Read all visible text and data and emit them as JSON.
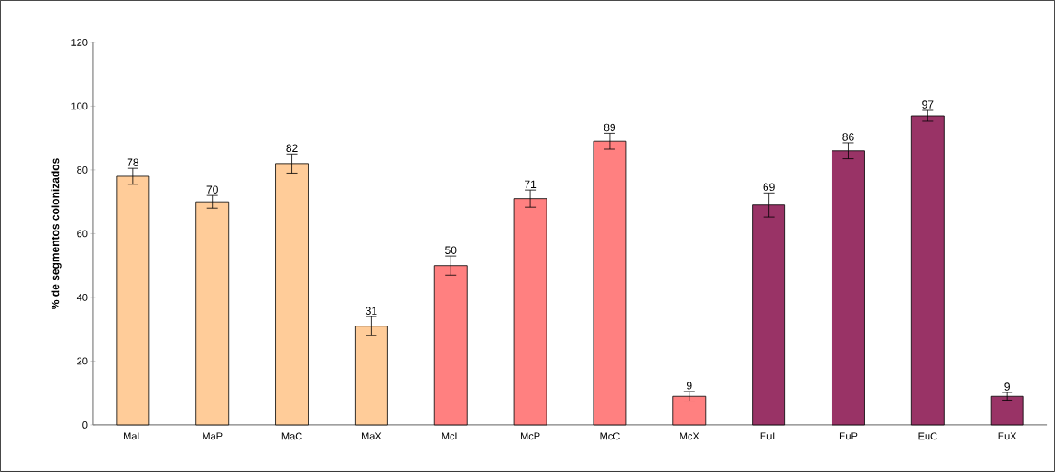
{
  "chart_data": {
    "type": "bar",
    "ylabel": "% de segmentos colonizados",
    "categories": [
      "MaL",
      "MaP",
      "MaC",
      "MaX",
      "McL",
      "McP",
      "McC",
      "McX",
      "EuL",
      "EuP",
      "EuC",
      "EuX"
    ],
    "values": [
      78,
      70,
      82,
      31,
      50,
      71,
      89,
      9,
      69,
      86,
      97,
      9
    ],
    "errors": [
      2.5,
      2,
      3,
      3,
      3,
      2.7,
      2.5,
      1.5,
      3.8,
      2.5,
      1.7,
      1.2
    ],
    "colors": [
      "#ffcc99",
      "#ffcc99",
      "#ffcc99",
      "#ffcc99",
      "#ff8080",
      "#ff8080",
      "#ff8080",
      "#ff8080",
      "#993366",
      "#993366",
      "#993366",
      "#993366"
    ],
    "ylim": [
      0,
      120
    ],
    "yticks": [
      0,
      20,
      40,
      60,
      80,
      100,
      120
    ],
    "grid": false,
    "data_labels": true
  }
}
